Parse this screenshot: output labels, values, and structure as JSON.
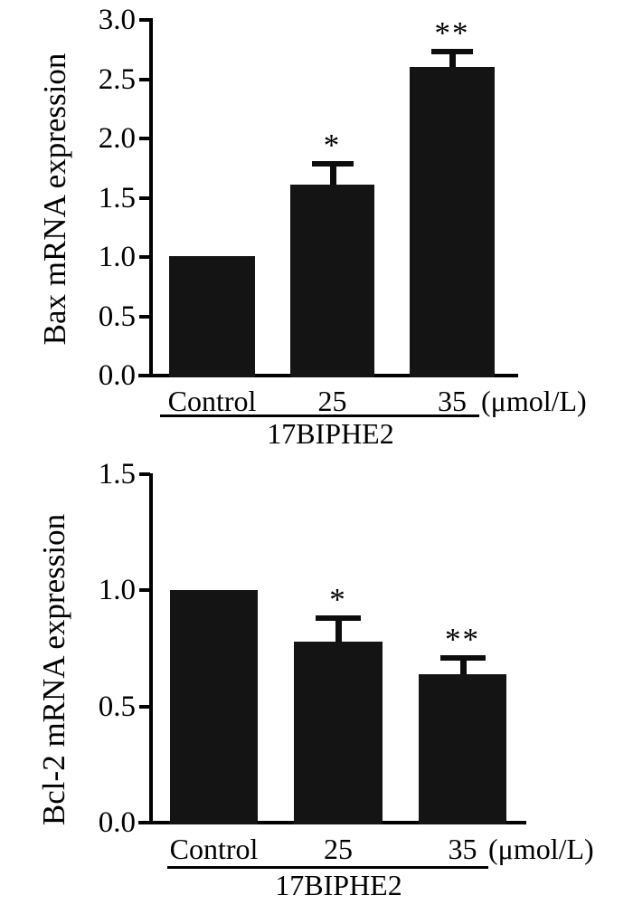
{
  "chart_data": [
    {
      "type": "bar",
      "title": "",
      "ylabel": "Bax mRNA expression",
      "xlabel": "",
      "categories": [
        "Control",
        "25",
        "35"
      ],
      "values": [
        1.01,
        1.61,
        2.6
      ],
      "errors_upper": [
        0,
        0.18,
        0.13
      ],
      "significance": [
        "",
        "*",
        "**"
      ],
      "unit_label": "(μmol/L)",
      "group_label": "17BIPHE2",
      "ylim": [
        0,
        3.0
      ],
      "yticks": [
        0,
        0.5,
        1.0,
        1.5,
        2.0,
        2.5,
        3.0
      ],
      "ytick_labels": [
        "0.0",
        "0.5",
        "1.0",
        "1.5",
        "2.0",
        "2.5",
        "3.0"
      ],
      "bar_color": "#141414",
      "axis_color": "#000000",
      "grid": false,
      "legend": "none"
    },
    {
      "type": "bar",
      "title": "",
      "ylabel": "Bcl-2 mRNA expression",
      "xlabel": "",
      "categories": [
        "Control",
        "25",
        "35"
      ],
      "values": [
        1.0,
        0.78,
        0.64
      ],
      "errors_upper": [
        0,
        0.1,
        0.07
      ],
      "significance": [
        "",
        "*",
        "**"
      ],
      "unit_label": "(μmol/L)",
      "group_label": "17BIPHE2",
      "ylim": [
        0,
        1.5
      ],
      "yticks": [
        0,
        0.5,
        1.0,
        1.5
      ],
      "ytick_labels": [
        "0.0",
        "0.5",
        "1.0",
        "1.5"
      ],
      "bar_color": "#141414",
      "axis_color": "#000000",
      "grid": false,
      "legend": "none"
    }
  ]
}
